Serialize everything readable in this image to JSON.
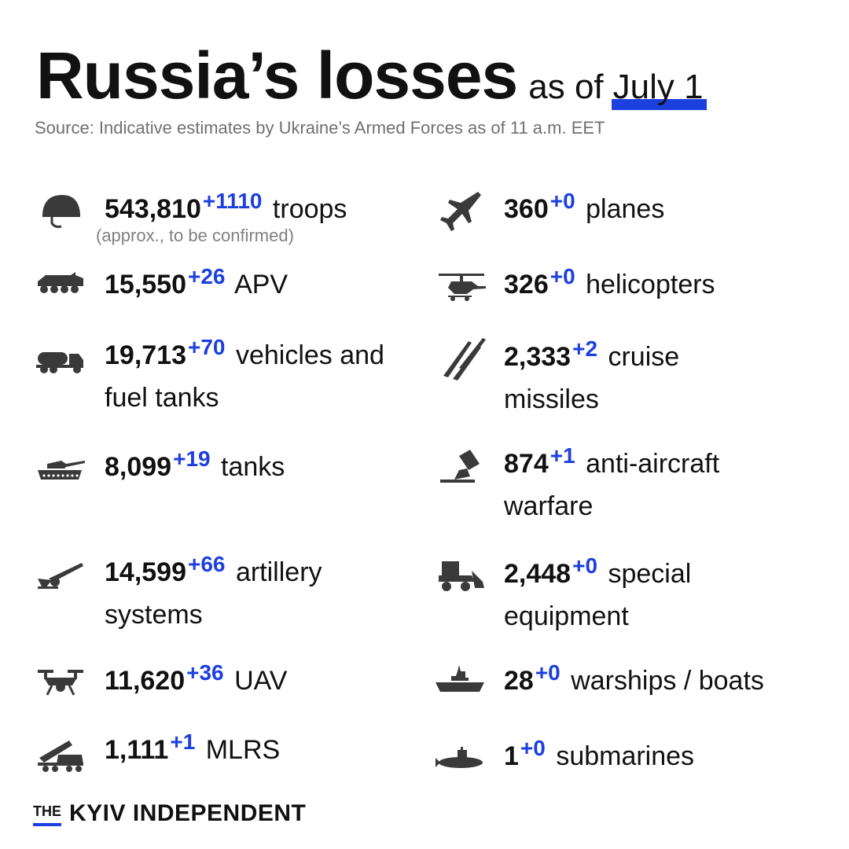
{
  "header": {
    "title": "Russia’s losses",
    "subtitle": "as of",
    "date": "July 1",
    "source": "Source: Indicative estimates by Ukraine’s Armed Forces as of 11 a.m. EET"
  },
  "colors": {
    "accent": "#1c3fe0",
    "text": "#111111",
    "muted": "#707070",
    "icon": "#3a3a3a"
  },
  "left_column": [
    {
      "icon": "helmet-icon",
      "value": "543,810",
      "delta": "+1110",
      "label": "troops",
      "note": "(approx., to be confirmed)"
    },
    {
      "icon": "apv-icon",
      "value": "15,550",
      "delta": "+26",
      "label": "APV"
    },
    {
      "icon": "fuel-truck-icon",
      "value": "19,713",
      "delta": "+70",
      "label": "vehicles and",
      "label2": "fuel tanks"
    },
    {
      "icon": "tank-icon",
      "value": "8,099",
      "delta": "+19",
      "label": "tanks"
    },
    {
      "icon": "artillery-icon",
      "value": "14,599",
      "delta": "+66",
      "label": "artillery",
      "label2": "systems"
    },
    {
      "icon": "drone-icon",
      "value": "11,620",
      "delta": "+36",
      "label": "UAV"
    },
    {
      "icon": "mlrs-icon",
      "value": "1,111",
      "delta": "+1",
      "label": "MLRS"
    }
  ],
  "right_column": [
    {
      "icon": "plane-icon",
      "value": "360",
      "delta": "+0",
      "label": "planes"
    },
    {
      "icon": "helicopter-icon",
      "value": "326",
      "delta": "+0",
      "label": "helicopters"
    },
    {
      "icon": "missiles-icon",
      "value": "2,333",
      "delta": "+2",
      "label": "cruise",
      "label2": "missiles"
    },
    {
      "icon": "anti-aircraft-icon",
      "value": "874",
      "delta": "+1",
      "label": "anti-aircraft",
      "label2": "warfare"
    },
    {
      "icon": "loader-icon",
      "value": "2,448",
      "delta": "+0",
      "label": "special",
      "label2": "equipment"
    },
    {
      "icon": "warship-icon",
      "value": "28",
      "delta": "+0",
      "label": "warships / boats"
    },
    {
      "icon": "submarine-icon",
      "value": "1",
      "delta": "+0",
      "label": "submarines"
    }
  ],
  "footer": {
    "brand_prefix": "THE",
    "brand_name": "KYIV INDEPENDENT"
  }
}
